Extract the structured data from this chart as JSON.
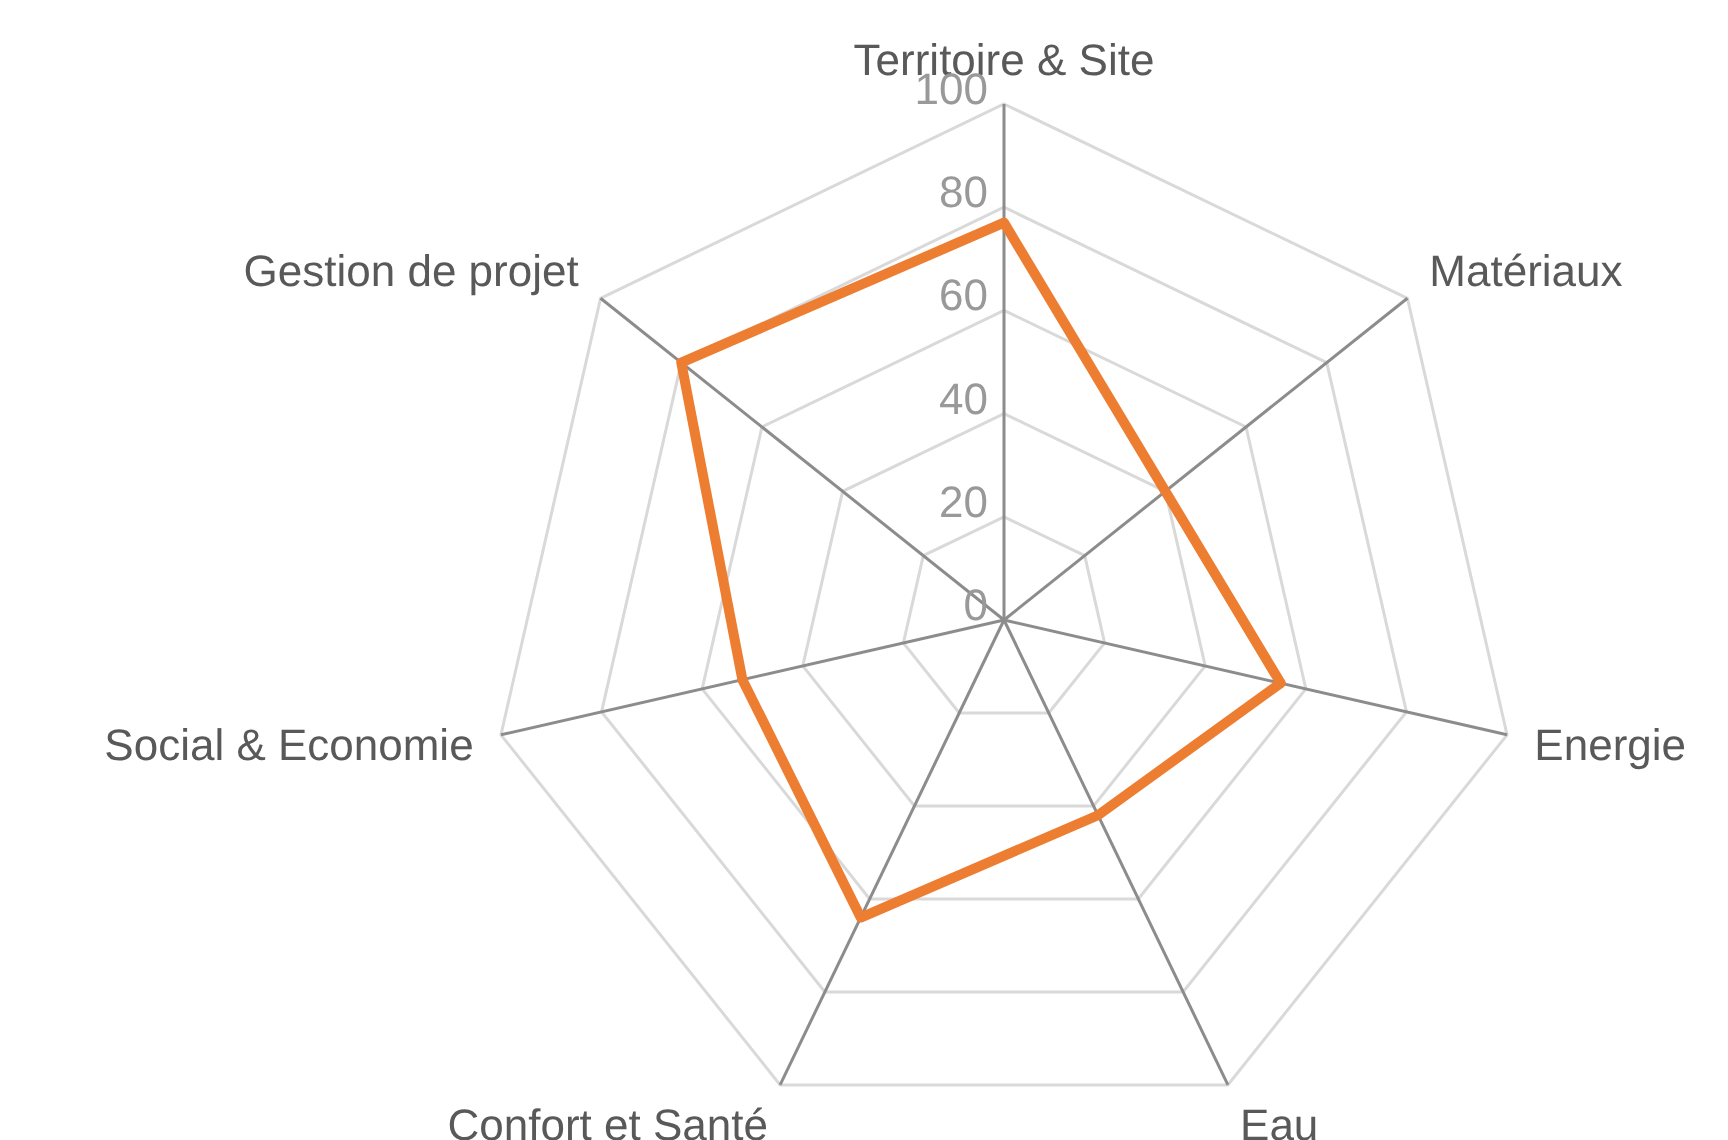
{
  "chart_data": {
    "type": "radar",
    "categories": [
      "Territoire & Site",
      "Matériaux",
      "Energie",
      "Eau",
      "Confort et Santé",
      "Social & Economie",
      "Gestion de projet"
    ],
    "series": [
      {
        "color": "#ed7d31",
        "values": [
          77,
          40,
          55,
          42,
          64,
          52,
          80
        ]
      }
    ],
    "ylim": [
      0,
      100
    ],
    "yticks": [
      0,
      20,
      40,
      60,
      80,
      100
    ],
    "grid": true,
    "legend": false,
    "marker": "none",
    "line_style": "solid"
  }
}
